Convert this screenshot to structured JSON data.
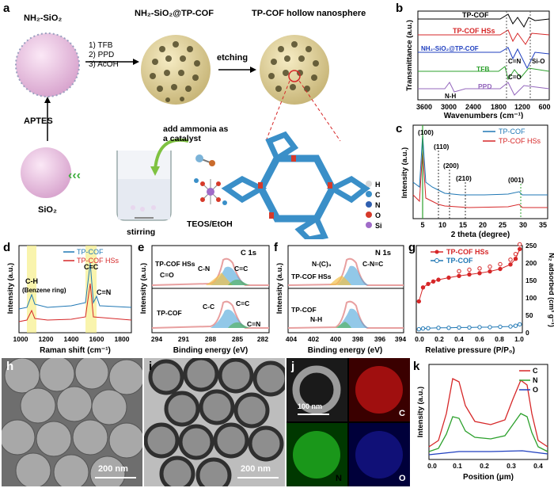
{
  "figure": {
    "panel_letters": [
      "a",
      "b",
      "c",
      "d",
      "e",
      "f",
      "g",
      "h",
      "i",
      "j",
      "k"
    ]
  },
  "schematic": {
    "nodes": {
      "start": "NH₂-SiO₂",
      "middle": "NH₂-SiO₂@TP-COF",
      "final": "TP-COF hollow nanosphere",
      "sio2": "SiO₂",
      "teos": "TEOS/EtOH"
    },
    "steps": [
      "1) TFB",
      "2) PPD",
      "3) AcOH"
    ],
    "etching": "etching",
    "aptes": "APTES",
    "ammonia": [
      "add ammonia as",
      "a catalyst"
    ],
    "stirring": "stirring",
    "atom_legend": [
      {
        "label": "H",
        "color": "#d9d9d9"
      },
      {
        "label": "C",
        "color": "#3a8fc8"
      },
      {
        "label": "N",
        "color": "#2f5fb0"
      },
      {
        "label": "O",
        "color": "#d63a2a"
      },
      {
        "label": "Si",
        "color": "#a06cc8"
      }
    ]
  },
  "chart_data": [
    {
      "panel": "b",
      "type": "line",
      "xlabel": "Wavenumbers (cm⁻¹)",
      "ylabel": "Transmittance (a.u.)",
      "xticks": [
        3600,
        3000,
        2400,
        1800,
        1200,
        600
      ],
      "series_labels": [
        "TP-COF",
        "TP-COF HSs",
        "NH₂-SiO₂@TP-COF",
        "TFB",
        "PPD"
      ],
      "annotations": [
        "C=N",
        "Si-O",
        "C=O",
        "N-H"
      ],
      "colors": [
        "#000000",
        "#d62728",
        "#1f3fbf",
        "#2ca02c",
        "#9467bd"
      ]
    },
    {
      "panel": "c",
      "type": "line",
      "xlabel": "2 theta (degree)",
      "ylabel": "Intensity (a.u.)",
      "xticks": [
        5,
        10,
        15,
        20,
        25,
        30,
        35
      ],
      "legend": [
        "TP-COF",
        "TP-COF HSs"
      ],
      "peaks": [
        "(100)",
        "(110)",
        "(200)",
        "(210)",
        "(001)"
      ],
      "colors": [
        "#1f77b4",
        "#d62728"
      ]
    },
    {
      "panel": "d",
      "type": "line",
      "xlabel": "Raman shift (cm⁻¹)",
      "ylabel": "Intensity (a.u.)",
      "xticks": [
        1000,
        1100,
        1200,
        1300,
        1400,
        1500,
        1600,
        1700,
        1800,
        1900
      ],
      "legend": [
        "TP-COF",
        "TP-COF HSs"
      ],
      "annotations": [
        "C-H",
        "(Benzene ring)",
        "C=C",
        "C=N"
      ],
      "colors": [
        "#1f77b4",
        "#d62728"
      ]
    },
    {
      "panel": "e",
      "type": "line",
      "title": "C 1s",
      "xlabel": "Binding energy (eV)",
      "ylabel": "Intensity (a.u.)",
      "xticks": [
        294,
        291,
        288,
        285,
        282
      ],
      "labels": [
        "TP-COF HSs",
        "TP-COF"
      ],
      "annotations_top": [
        "C=O",
        "C-N",
        "C=C"
      ],
      "annotations_bottom": [
        "C-C",
        "C=C",
        "C=N"
      ]
    },
    {
      "panel": "f",
      "type": "line",
      "title": "N 1s",
      "xlabel": "Binding energy (eV)",
      "ylabel": "Intensity (a.u.)",
      "xticks": [
        404,
        402,
        400,
        398,
        396,
        394
      ],
      "labels": [
        "TP-COF HSs",
        "TP-COF"
      ],
      "annotations_top": [
        "N-(C)₃",
        "C-N=C"
      ],
      "annotations_bottom": [
        "N-H"
      ]
    },
    {
      "panel": "g",
      "type": "scatter",
      "xlabel": "Relative pressure (P/P₀)",
      "ylabel": "N₂ adsorbed (cm³ g⁻¹)",
      "xticks": [
        "0.0",
        "0.2",
        "0.4",
        "0.6",
        "0.8",
        "1.0"
      ],
      "yticks": [
        0,
        50,
        100,
        150,
        200,
        250
      ],
      "legend": [
        "TP-COF HSs",
        "TP-COF"
      ],
      "colors": [
        "#d62728",
        "#1f77b4"
      ],
      "series": [
        {
          "name": "TP-COF HSs",
          "ads_x": [
            0.01,
            0.05,
            0.1,
            0.15,
            0.2,
            0.3,
            0.4,
            0.5,
            0.6,
            0.7,
            0.8,
            0.9,
            0.95,
            0.99
          ],
          "ads_y": [
            90,
            130,
            140,
            147,
            152,
            158,
            163,
            167,
            171,
            176,
            183,
            196,
            212,
            240
          ]
        },
        {
          "name": "TP-COF",
          "ads_x": [
            0.01,
            0.05,
            0.1,
            0.2,
            0.3,
            0.4,
            0.5,
            0.6,
            0.7,
            0.8,
            0.9,
            0.95,
            0.99
          ],
          "ads_y": [
            10,
            12,
            13,
            14,
            14,
            15,
            15,
            16,
            16,
            17,
            18,
            20,
            24
          ]
        }
      ]
    },
    {
      "panel": "k",
      "type": "line",
      "xlabel": "Position (μm)",
      "ylabel": "Intensity (a.u.)",
      "xticks": [
        "0.0",
        "0.1",
        "0.2",
        "0.3",
        "0.4"
      ],
      "legend": [
        "C",
        "N",
        "O"
      ],
      "colors": [
        "#d62728",
        "#2ca02c",
        "#1f3fbf"
      ]
    }
  ],
  "micrographs": {
    "h_scale": "200 nm",
    "i_scale": "200 nm",
    "j_scale": "100 nm",
    "j_elements": [
      "C",
      "N",
      "O"
    ]
  }
}
